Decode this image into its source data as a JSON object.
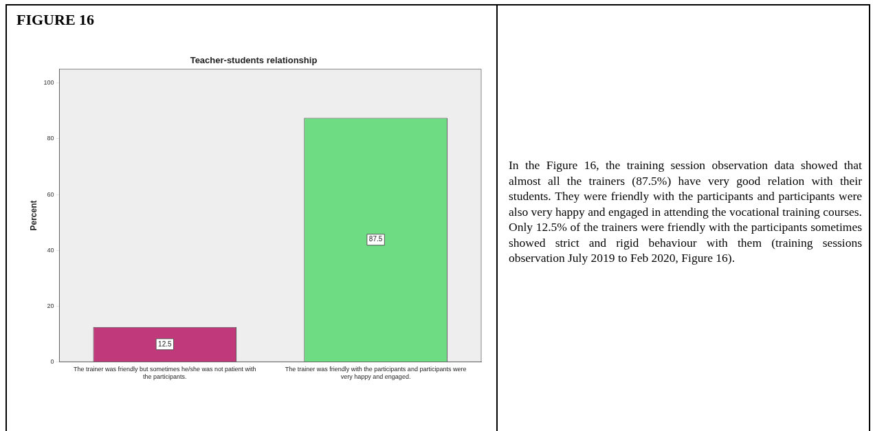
{
  "chart_data": {
    "type": "bar",
    "title": "Teacher-students relationship",
    "ylabel": "Percent",
    "categories": [
      "The trainer was friendly but sometimes he/she was not patient with the participants.",
      "The trainer was friendly with the participants and participants were very happy and engaged."
    ],
    "values": [
      12.5,
      87.5
    ],
    "colors": [
      "#c0397b",
      "#6edc82"
    ],
    "ylim": [
      0,
      105
    ],
    "yticks": [
      0,
      20,
      40,
      60,
      80,
      100
    ],
    "grid": false,
    "legend": false,
    "data_labels": true,
    "annotations": [
      "FIGURE 16",
      "In the Figure 16, the training session observation data showed that almost all the trainers (87.5%) have very good relation with their students. They were friendly with the participants and participants were also very happy and engaged in attending the vocational training courses. Only 12.5% of the trainers were friendly with the participants sometimes showed strict and rigid behaviour with them (training sessions observation July 2019 to Feb 2020, Figure 16)."
    ]
  }
}
